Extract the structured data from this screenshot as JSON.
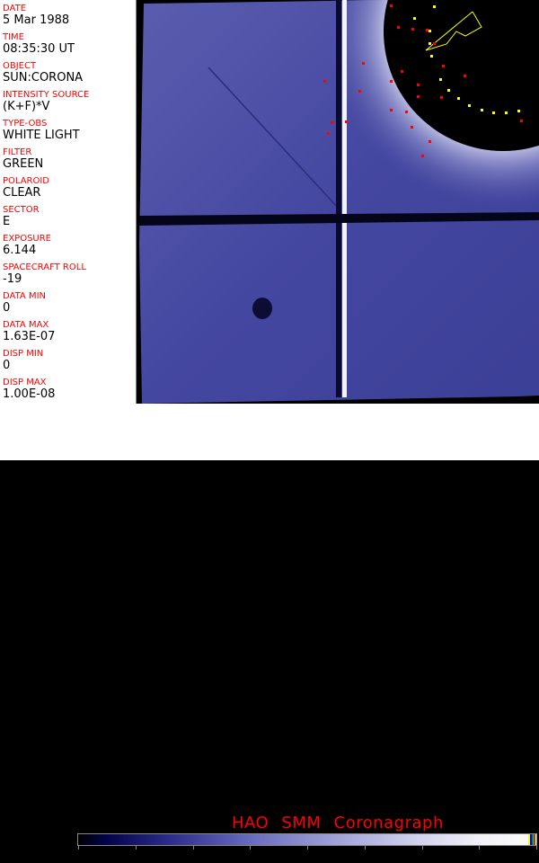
{
  "fields": [
    {
      "label": "DATE",
      "value": "5 Mar 1988"
    },
    {
      "label": "TIME",
      "value": "08:35:30 UT"
    },
    {
      "label": "OBJECT",
      "value": "SUN:CORONA"
    },
    {
      "label": "INTENSITY SOURCE",
      "value": "(K+F)*V"
    },
    {
      "label": "TYPE-OBS",
      "value": "WHITE LIGHT"
    },
    {
      "label": "FILTER",
      "value": "GREEN"
    },
    {
      "label": "POLAROID",
      "value": "CLEAR"
    },
    {
      "label": "SECTOR",
      "value": "E"
    },
    {
      "label": "EXPOSURE",
      "value": "6.144"
    },
    {
      "label": "SPACECRAFT ROLL",
      "value": "-19"
    },
    {
      "label": "DATA MIN",
      "value": "0"
    },
    {
      "label": "DATA MAX",
      "value": "1.63E-07"
    },
    {
      "label": "DISP MIN",
      "value": "0"
    },
    {
      "label": "DISP MAX",
      "value": "1.00E-08"
    }
  ],
  "title": "HAO  SMM Coronagraph",
  "colorbar": {
    "ticks": [
      "0",
      "63",
      "127",
      "191",
      "255"
    ],
    "min": 0,
    "max": 255,
    "overlay_colors": [
      "#ffff00",
      "#0000ff",
      "#00cc00",
      "#ff0000"
    ]
  },
  "colors": {
    "label": "#ff0000",
    "image_blue": "#3a3d9a"
  }
}
